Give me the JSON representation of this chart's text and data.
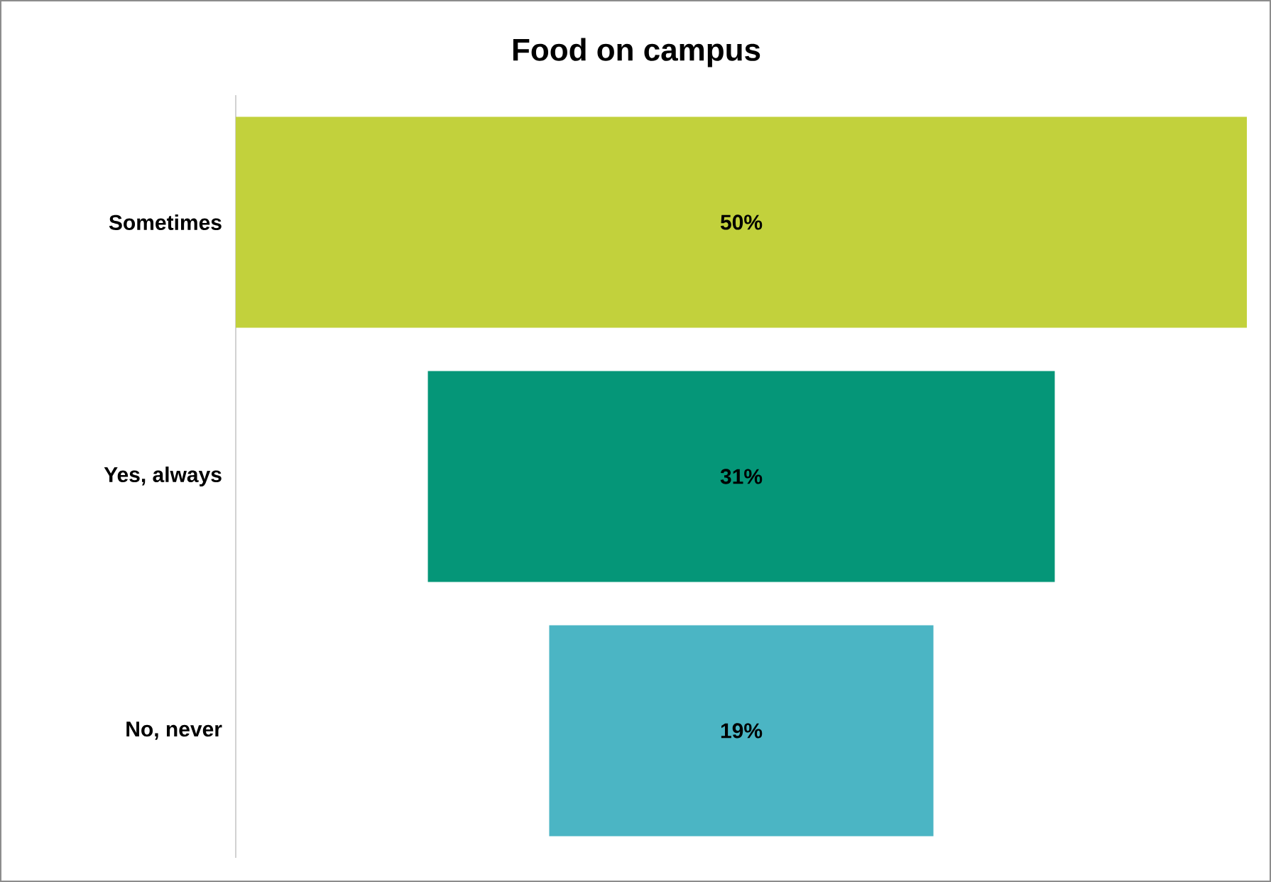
{
  "chart_data": {
    "type": "other",
    "title": "Food on campus",
    "categories": [
      "Sometimes",
      "Yes, always",
      "No, never"
    ],
    "values": [
      50,
      31,
      19
    ],
    "value_labels": [
      "50%",
      "31%",
      "19%"
    ],
    "colors": [
      "#c2d13c",
      "#059678",
      "#4bb5c4"
    ]
  }
}
